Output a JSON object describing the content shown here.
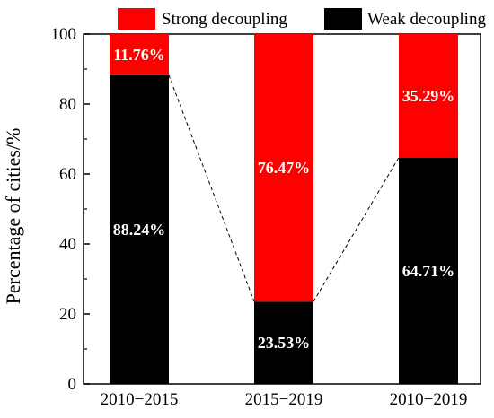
{
  "chart_data": {
    "type": "bar",
    "stacked": true,
    "title": "",
    "xlabel": "",
    "ylabel": "Percentage of cities/%",
    "ylim": [
      0,
      100
    ],
    "yticks": [
      0,
      20,
      40,
      60,
      80,
      100
    ],
    "categories": [
      "2010−2015",
      "2015−2019",
      "2010−2019"
    ],
    "series": [
      {
        "name": "Weak decoupling",
        "color": "#000000",
        "values": [
          88.24,
          23.53,
          64.71
        ],
        "labels": [
          "88.24%",
          "23.53%",
          "64.71%"
        ]
      },
      {
        "name": "Strong decoupling",
        "color": "#ff0000",
        "values": [
          11.76,
          76.47,
          35.29
        ],
        "labels": [
          "11.76%",
          "76.47%",
          "35.29%"
        ]
      }
    ],
    "legend": {
      "position": "top",
      "items": [
        {
          "name": "Strong decoupling",
          "color": "#ff0000"
        },
        {
          "name": "Weak decoupling",
          "color": "#000000"
        }
      ]
    },
    "connector_lines": "dashed",
    "grid": false
  }
}
